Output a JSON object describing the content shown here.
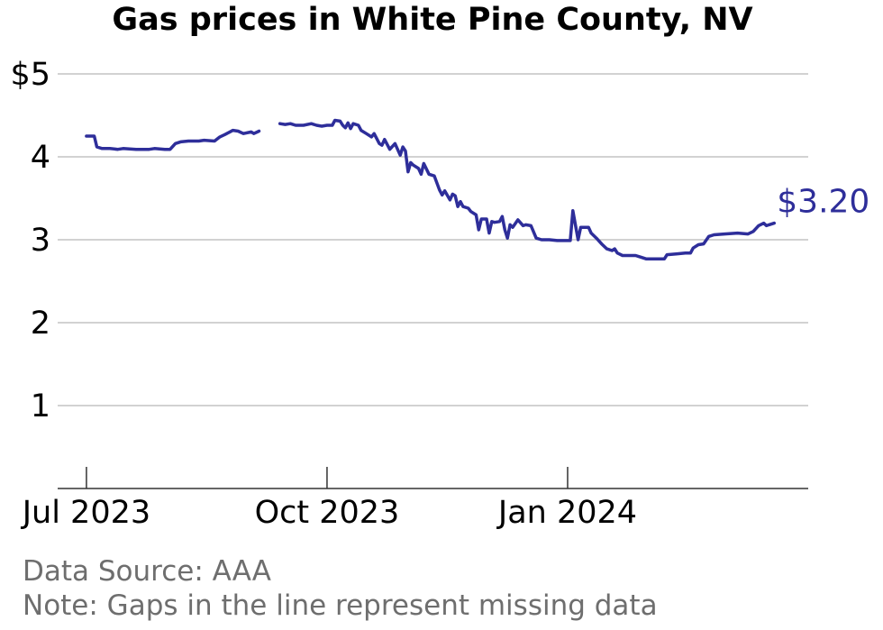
{
  "title": "Gas prices in White Pine County, NV",
  "footer": {
    "source": "Data Source: AAA",
    "note": "Note: Gaps in the line represent missing data"
  },
  "colors": {
    "line": "#2e2e9a",
    "grid": "#b8b8b8",
    "axis": "#333333",
    "footer": "#6e6e6e"
  },
  "chart_data": {
    "type": "line",
    "title": "Gas prices in White Pine County, NV",
    "xlabel": "",
    "ylabel": "",
    "x_axis": "date",
    "xlim": [
      "2023-06-20",
      "2024-04-02"
    ],
    "ylim": [
      0,
      5.3
    ],
    "y_ticks": [
      1,
      2,
      3,
      4,
      5
    ],
    "y_tick_labels": [
      "1",
      "2",
      "3",
      "4",
      "$5"
    ],
    "x_ticks": [
      "2023-07-01",
      "2023-10-01",
      "2024-01-01"
    ],
    "x_tick_labels": [
      "Jul 2023",
      "Oct 2023",
      "Jan 2024"
    ],
    "grid": "horizontal",
    "end_label": "$3.20",
    "series": [
      {
        "segments": [
          [
            [
              "2023-07-01",
              4.25
            ],
            [
              "2023-07-04",
              4.25
            ],
            [
              "2023-07-05",
              4.12
            ],
            [
              "2023-07-07",
              4.1
            ],
            [
              "2023-07-10",
              4.1
            ],
            [
              "2023-07-13",
              4.09
            ],
            [
              "2023-07-15",
              4.1
            ],
            [
              "2023-07-20",
              4.09
            ],
            [
              "2023-07-25",
              4.09
            ],
            [
              "2023-07-27",
              4.1
            ],
            [
              "2023-07-31",
              4.09
            ],
            [
              "2023-08-02",
              4.09
            ],
            [
              "2023-08-04",
              4.16
            ],
            [
              "2023-08-06",
              4.18
            ],
            [
              "2023-08-09",
              4.19
            ],
            [
              "2023-08-13",
              4.19
            ],
            [
              "2023-08-15",
              4.2
            ],
            [
              "2023-08-19",
              4.19
            ],
            [
              "2023-08-21",
              4.24
            ],
            [
              "2023-08-23",
              4.27
            ],
            [
              "2023-08-26",
              4.32
            ],
            [
              "2023-08-28",
              4.31
            ],
            [
              "2023-08-30",
              4.28
            ],
            [
              "2023-09-02",
              4.3
            ],
            [
              "2023-09-03",
              4.28
            ],
            [
              "2023-09-05",
              4.31
            ]
          ],
          [
            [
              "2023-09-13",
              4.4
            ],
            [
              "2023-09-15",
              4.39
            ],
            [
              "2023-09-17",
              4.4
            ],
            [
              "2023-09-19",
              4.38
            ],
            [
              "2023-09-22",
              4.38
            ],
            [
              "2023-09-25",
              4.4
            ],
            [
              "2023-09-27",
              4.38
            ],
            [
              "2023-09-29",
              4.37
            ],
            [
              "2023-10-01",
              4.38
            ],
            [
              "2023-10-03",
              4.38
            ],
            [
              "2023-10-04",
              4.44
            ],
            [
              "2023-10-06",
              4.43
            ],
            [
              "2023-10-07",
              4.38
            ],
            [
              "2023-10-08",
              4.35
            ],
            [
              "2023-10-09",
              4.41
            ],
            [
              "2023-10-10",
              4.34
            ],
            [
              "2023-10-11",
              4.4
            ],
            [
              "2023-10-13",
              4.38
            ],
            [
              "2023-10-14",
              4.32
            ],
            [
              "2023-10-16",
              4.28
            ],
            [
              "2023-10-18",
              4.24
            ],
            [
              "2023-10-19",
              4.28
            ],
            [
              "2023-10-21",
              4.16
            ],
            [
              "2023-10-22",
              4.14
            ],
            [
              "2023-10-23",
              4.21
            ],
            [
              "2023-10-25",
              4.09
            ],
            [
              "2023-10-27",
              4.16
            ],
            [
              "2023-10-29",
              4.02
            ],
            [
              "2023-10-30",
              4.12
            ],
            [
              "2023-10-31",
              4.07
            ],
            [
              "2023-11-01",
              3.82
            ],
            [
              "2023-11-02",
              3.93
            ],
            [
              "2023-11-03",
              3.9
            ],
            [
              "2023-11-05",
              3.86
            ],
            [
              "2023-11-06",
              3.79
            ],
            [
              "2023-11-07",
              3.92
            ],
            [
              "2023-11-09",
              3.79
            ],
            [
              "2023-11-11",
              3.77
            ],
            [
              "2023-11-13",
              3.6
            ],
            [
              "2023-11-14",
              3.54
            ],
            [
              "2023-11-15",
              3.59
            ],
            [
              "2023-11-17",
              3.48
            ],
            [
              "2023-11-18",
              3.55
            ],
            [
              "2023-11-19",
              3.53
            ],
            [
              "2023-11-20",
              3.4
            ],
            [
              "2023-11-21",
              3.46
            ],
            [
              "2023-11-22",
              3.4
            ],
            [
              "2023-11-24",
              3.38
            ],
            [
              "2023-11-25",
              3.34
            ],
            [
              "2023-11-27",
              3.3
            ],
            [
              "2023-11-28",
              3.12
            ],
            [
              "2023-11-29",
              3.25
            ],
            [
              "2023-12-01",
              3.25
            ],
            [
              "2023-12-02",
              3.08
            ],
            [
              "2023-12-03",
              3.22
            ],
            [
              "2023-12-04",
              3.21
            ],
            [
              "2023-12-06",
              3.22
            ],
            [
              "2023-12-07",
              3.28
            ],
            [
              "2023-12-08",
              3.12
            ],
            [
              "2023-12-09",
              3.02
            ],
            [
              "2023-12-10",
              3.18
            ],
            [
              "2023-12-11",
              3.15
            ],
            [
              "2023-12-13",
              3.24
            ],
            [
              "2023-12-15",
              3.17
            ],
            [
              "2023-12-16",
              3.18
            ],
            [
              "2023-12-18",
              3.17
            ],
            [
              "2023-12-20",
              3.02
            ],
            [
              "2023-12-22",
              3.0
            ],
            [
              "2023-12-25",
              3.0
            ],
            [
              "2023-12-28",
              2.99
            ],
            [
              "2024-01-01",
              2.99
            ],
            [
              "2024-01-02",
              2.99
            ],
            [
              "2024-01-03",
              3.35
            ],
            [
              "2024-01-05",
              3.0
            ],
            [
              "2024-01-06",
              3.15
            ],
            [
              "2024-01-09",
              3.15
            ],
            [
              "2024-01-10",
              3.08
            ],
            [
              "2024-01-12",
              3.02
            ],
            [
              "2024-01-14",
              2.95
            ],
            [
              "2024-01-16",
              2.89
            ],
            [
              "2024-01-18",
              2.87
            ],
            [
              "2024-01-19",
              2.89
            ],
            [
              "2024-01-20",
              2.84
            ],
            [
              "2024-01-22",
              2.81
            ],
            [
              "2024-01-27",
              2.81
            ],
            [
              "2024-01-29",
              2.79
            ],
            [
              "2024-01-31",
              2.77
            ],
            [
              "2024-02-07",
              2.77
            ],
            [
              "2024-02-08",
              2.82
            ],
            [
              "2024-02-12",
              2.83
            ],
            [
              "2024-02-15",
              2.84
            ],
            [
              "2024-02-17",
              2.84
            ],
            [
              "2024-02-18",
              2.9
            ],
            [
              "2024-02-20",
              2.94
            ],
            [
              "2024-02-22",
              2.95
            ],
            [
              "2024-02-24",
              3.04
            ],
            [
              "2024-02-26",
              3.06
            ],
            [
              "2024-03-01",
              3.07
            ],
            [
              "2024-03-06",
              3.08
            ],
            [
              "2024-03-10",
              3.07
            ],
            [
              "2024-03-12",
              3.1
            ],
            [
              "2024-03-14",
              3.17
            ],
            [
              "2024-03-16",
              3.2
            ],
            [
              "2024-03-17",
              3.17
            ],
            [
              "2024-03-18",
              3.18
            ],
            [
              "2024-03-20",
              3.2
            ]
          ]
        ]
      }
    ]
  }
}
